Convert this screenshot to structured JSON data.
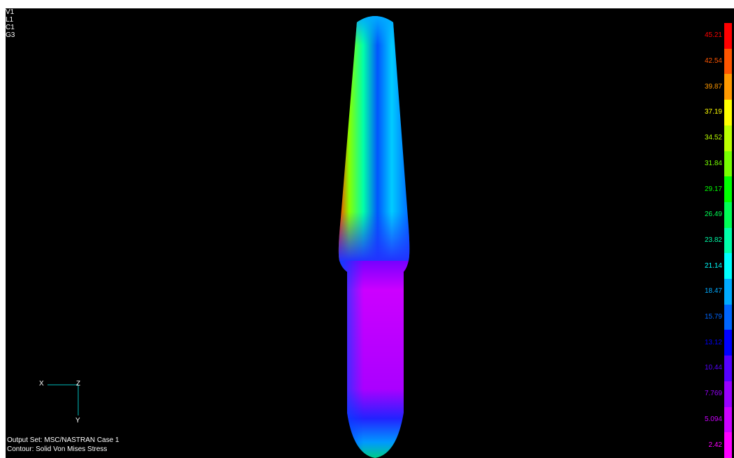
{
  "view_flags": [
    "V1",
    "L1",
    "C1",
    "G3"
  ],
  "triad": {
    "x": "X",
    "z": "Z",
    "y": "Y"
  },
  "footer": {
    "output_set": "Output Set: MSC/NASTRAN Case 1",
    "contour": "Contour: Solid Von Mises Stress"
  },
  "legend": [
    {
      "label": "45.21",
      "color": "#ff0000"
    },
    {
      "label": "42.54",
      "color": "#ff5500"
    },
    {
      "label": "39.87",
      "color": "#ff9900"
    },
    {
      "label": "37.19",
      "color": "#ffff00"
    },
    {
      "label": "34.52",
      "color": "#bbff00"
    },
    {
      "label": "31.84",
      "color": "#77ff00"
    },
    {
      "label": "29.17",
      "color": "#00ff00"
    },
    {
      "label": "26.49",
      "color": "#00ff55"
    },
    {
      "label": "23.82",
      "color": "#00ffaa"
    },
    {
      "label": "21.14",
      "color": "#00ffff"
    },
    {
      "label": "18.47",
      "color": "#00aaff"
    },
    {
      "label": "15.79",
      "color": "#0066ff"
    },
    {
      "label": "13.12",
      "color": "#0000ff"
    },
    {
      "label": "10.44",
      "color": "#5500ff"
    },
    {
      "label": "7.769",
      "color": "#9900ff"
    },
    {
      "label": "5.094",
      "color": "#cc00ff"
    },
    {
      "label": "2.42",
      "color": "#ff00ff"
    }
  ]
}
